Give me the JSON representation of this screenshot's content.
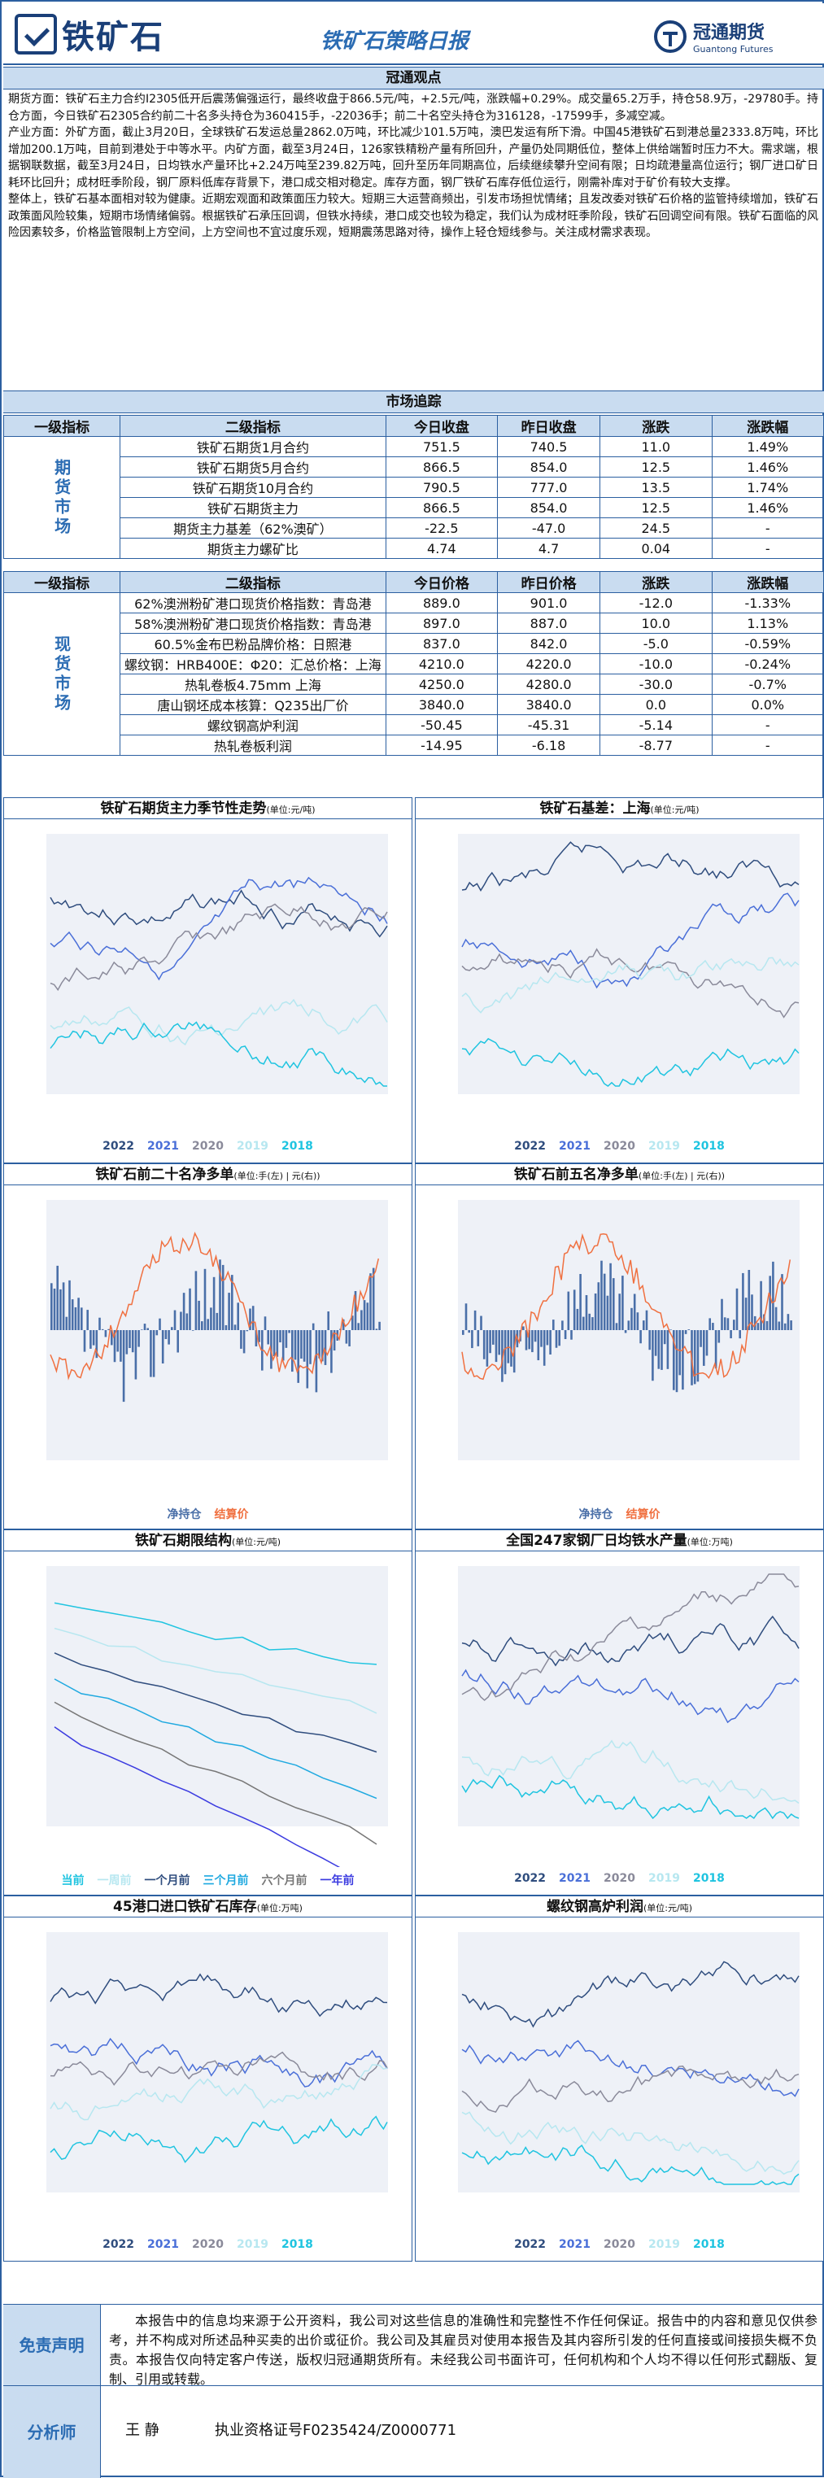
{
  "header": {
    "logo": "铁矿石",
    "title": "铁矿石策略日报",
    "brand_cn": "冠通期货",
    "brand_en": "Guantong Futures"
  },
  "view": {
    "section": "冠通观点",
    "p1": "期货方面：铁矿石主力合约I2305低开后震荡偏强运行，最终收盘于866.5元/吨，+2.5元/吨，涨跌幅+0.29%。成交量65.2万手，持仓58.9万，-29780手。持仓方面，今日铁矿石2305合约前二十名多头持仓为360415手，-22036手；前二十名空头持仓为316128，-17599手，多减空减。",
    "p2": "产业方面：外矿方面，截止3月20日，全球铁矿石发运总量2862.0万吨，环比减少101.5万吨，澳巴发运有所下滑。中国45港铁矿石到港总量2333.8万吨，环比增加200.1万吨，目前到港处于中等水平。内矿方面，截至3月24日，126家铁精粉产量有所回升，产量仍处同期低位，整体上供给端暂时压力不大。需求端，根据钢联数据，截至3月24日，日均铁水产量环比+2.24万吨至239.82万吨，回升至历年同期高位，后续继续攀升空间有限；日均疏港量高位运行；钢厂进口矿日耗环比回升；成材旺季阶段，钢厂原料低库存背景下，港口成交相对稳定。库存方面，钢厂铁矿石库存低位运行，刚需补库对于矿价有较大支撑。",
    "p3": "整体上，铁矿石基本面相对较为健康。近期宏观面和政策面压力较大。短期三大运营商频出，引发市场担忧情绪；且发改委对铁矿石价格的监管持续增加，铁矿石政策面风险较集，短期市场情绪偏弱。根据铁矿石承压回调，但铁水持续，港口成交也较为稳定，我们认为成材旺季阶段，铁矿石回调空间有限。铁矿石面临的风险因素较多，价格监管限制上方空间，上方空间也不宜过度乐观，短期震荡思路对待，操作上轻仓短线参与。关注成材需求表现。"
  },
  "market": {
    "section": "市场追踪",
    "futures_header": [
      "一级指标",
      "二级指标",
      "今日收盘",
      "昨日收盘",
      "涨跌",
      "涨跌幅"
    ],
    "futures_label": "期货市场",
    "futures_rows": [
      [
        "铁矿石期货1月合约",
        "751.5",
        "740.5",
        "11.0",
        "1.49%"
      ],
      [
        "铁矿石期货5月合约",
        "866.5",
        "854.0",
        "12.5",
        "1.46%"
      ],
      [
        "铁矿石期货10月合约",
        "790.5",
        "777.0",
        "13.5",
        "1.74%"
      ],
      [
        "铁矿石期货主力",
        "866.5",
        "854.0",
        "12.5",
        "1.46%"
      ],
      [
        "期货主力基差（62%澳矿）",
        "-22.5",
        "-47.0",
        "24.5",
        "-"
      ],
      [
        "期货主力螺矿比",
        "4.74",
        "4.7",
        "0.04",
        "-"
      ]
    ],
    "spot_header": [
      "一级指标",
      "二级指标",
      "今日价格",
      "昨日价格",
      "涨跌",
      "涨跌幅"
    ],
    "spot_label": "现货市场",
    "spot_rows": [
      [
        "62%澳洲粉矿港口现货价格指数：青岛港",
        "889.0",
        "901.0",
        "-12.0",
        "-1.33%"
      ],
      [
        "58%澳洲粉矿港口现货价格指数：青岛港",
        "897.0",
        "887.0",
        "10.0",
        "1.13%"
      ],
      [
        "60.5%金布巴粉品牌价格：日照港",
        "837.0",
        "842.0",
        "-5.0",
        "-0.59%"
      ],
      [
        "螺纹钢：HRB400E：Φ20：汇总价格：上海",
        "4210.0",
        "4220.0",
        "-10.0",
        "-0.24%"
      ],
      [
        "热轧卷板4.75mm 上海",
        "4250.0",
        "4280.0",
        "-30.0",
        "-0.7%"
      ],
      [
        "唐山钢坯成本核算：Q235出厂价",
        "3840.0",
        "3840.0",
        "0.0",
        "0.0%"
      ],
      [
        "螺纹钢高炉利润",
        "-50.45",
        "-45.31",
        "-5.14",
        "-"
      ],
      [
        "热轧卷板利润",
        "-14.95",
        "-6.18",
        "-8.77",
        "-"
      ]
    ]
  },
  "charts": [
    {
      "title": "铁矿石期货主力季节性走势",
      "unit": "(单位:元/吨)",
      "legend": [
        "2022",
        "2021",
        "2020",
        "2019",
        "2018"
      ]
    },
    {
      "title": "铁矿石基差：上海",
      "unit": "(单位:元/吨)",
      "legend": [
        "2022",
        "2021",
        "2020",
        "2019",
        "2018"
      ]
    },
    {
      "title": "铁矿石前二十名净多单",
      "unit": "(单位:手(左) | 元(右))",
      "legend": [
        "净持仓",
        "结算价"
      ]
    },
    {
      "title": "铁矿石前五名净多单",
      "unit": "(单位:手(左) | 元(右))",
      "legend": [
        "净持仓",
        "结算价"
      ]
    },
    {
      "title": "铁矿石期限结构",
      "unit": "(单位:元/吨)",
      "legend": [
        "当前",
        "一周前",
        "一个月前",
        "三个月前",
        "六个月前",
        "一年前"
      ]
    },
    {
      "title": "全国247家钢厂日均铁水产量",
      "unit": "(单位:万吨)",
      "legend": [
        "2022",
        "2021",
        "2020",
        "2019",
        "2018"
      ]
    },
    {
      "title": "45港口进口铁矿石库存",
      "unit": "(单位:万吨)",
      "legend": [
        "2022",
        "2021",
        "2020",
        "2019",
        "2018"
      ]
    },
    {
      "title": "螺纹钢高炉利润",
      "unit": "(单位:元/吨)",
      "legend": [
        "2022",
        "2021",
        "2020",
        "2019",
        "2018"
      ]
    }
  ],
  "colors": {
    "y2022": "#2f4d7e",
    "y2021": "#4a6fd8",
    "y2020": "#8a8a9a",
    "y2019": "#b7e7f0",
    "y2018": "#1fc4e0",
    "bar": "#4a6fa8",
    "line": "#f07040"
  },
  "footer": {
    "disclaimer_label": "免责声明",
    "disclaimer": "本报告中的信息均来源于公开资料，我公司对这些信息的准确性和完整性不作任何保证。报告中的内容和意见仅供参考，并不构成对所述品种买卖的出价或征价。我公司及其雇员对使用本报告及其内容所引发的任何直接或间接损失概不负责。本报告仅向特定客户传送，版权归冠通期货所有。未经我公司书面许可，任何机构和个人均不得以任何形式翻版、复制、引用或转载。",
    "analyst_label": "分析师",
    "analyst": "王 静",
    "license": "执业资格证号F0235424/Z0000771"
  }
}
